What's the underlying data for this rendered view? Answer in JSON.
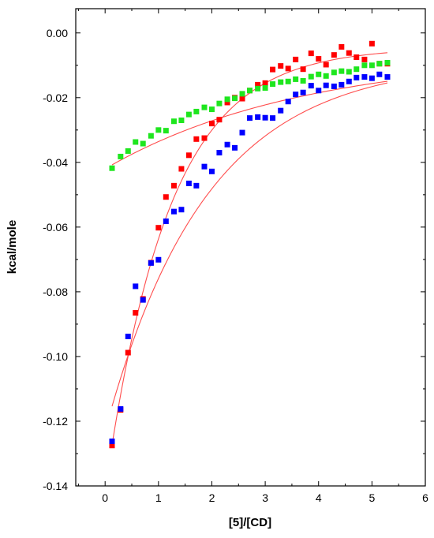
{
  "chart_data": {
    "type": "scatter",
    "xlabel": "[5]/[CD]",
    "ylabel": "kcal/mole",
    "xlim": [
      -0.55,
      6.0
    ],
    "ylim": [
      -0.14,
      0.0075
    ],
    "xticks": [
      0,
      1,
      2,
      3,
      4,
      5,
      6
    ],
    "yticks": [
      0.0,
      -0.02,
      -0.04,
      -0.06,
      -0.08,
      -0.1,
      -0.12,
      -0.14
    ],
    "ytick_labels": [
      "0.00",
      "-0.02",
      "-0.04",
      "-0.06",
      "-0.08",
      "-0.10",
      "-0.12",
      "-0.14"
    ],
    "grid": false,
    "fit_color": "#ff4d4d",
    "series": [
      {
        "color": "#ff0000",
        "x": [
          0.13,
          0.29,
          0.43,
          0.57,
          0.71,
          0.86,
          1.0,
          1.14,
          1.29,
          1.43,
          1.57,
          1.71,
          1.86,
          2.0,
          2.14,
          2.29,
          2.43,
          2.57,
          2.71,
          2.86,
          3.0,
          3.14,
          3.29,
          3.43,
          3.57,
          3.71,
          3.86,
          4.0,
          4.14,
          4.29,
          4.43,
          4.57,
          4.71,
          4.86,
          5.0,
          5.14,
          5.29
        ],
        "y": [
          -0.1275,
          -0.1165,
          -0.0988,
          -0.0865,
          -0.0822,
          -0.071,
          -0.0602,
          -0.0507,
          -0.0472,
          -0.042,
          -0.0378,
          -0.0328,
          -0.0325,
          -0.028,
          -0.0268,
          -0.0215,
          -0.02,
          -0.0203,
          -0.0178,
          -0.016,
          -0.0155,
          -0.0113,
          -0.0102,
          -0.011,
          -0.0082,
          -0.0112,
          -0.0063,
          -0.008,
          -0.0098,
          -0.0068,
          -0.0043,
          -0.0062,
          -0.0075,
          -0.0082,
          -0.0033,
          -0.0095,
          -0.0095
        ],
        "fit": {
          "model": "exponential",
          "a": -0.137,
          "b": 0.84,
          "c": -0.0045
        }
      },
      {
        "color": "#0000ff",
        "x": [
          0.13,
          0.29,
          0.43,
          0.57,
          0.71,
          0.86,
          1.0,
          1.14,
          1.29,
          1.43,
          1.57,
          1.71,
          1.86,
          2.0,
          2.14,
          2.29,
          2.43,
          2.57,
          2.71,
          2.86,
          3.0,
          3.14,
          3.29,
          3.43,
          3.57,
          3.71,
          3.86,
          4.0,
          4.14,
          4.29,
          4.43,
          4.57,
          4.71,
          4.86,
          5.0,
          5.14,
          5.29
        ],
        "y": [
          -0.1262,
          -0.1162,
          -0.0938,
          -0.0783,
          -0.0825,
          -0.0711,
          -0.0701,
          -0.0582,
          -0.0552,
          -0.0546,
          -0.0465,
          -0.0472,
          -0.0413,
          -0.0428,
          -0.037,
          -0.0345,
          -0.0355,
          -0.0308,
          -0.0263,
          -0.026,
          -0.0262,
          -0.0263,
          -0.024,
          -0.0212,
          -0.019,
          -0.0184,
          -0.0163,
          -0.0178,
          -0.0162,
          -0.0165,
          -0.016,
          -0.015,
          -0.0138,
          -0.0136,
          -0.014,
          -0.0128,
          -0.0136
        ],
        "fit": {
          "model": "exponential",
          "a": -0.1145,
          "b": 0.53,
          "c": -0.0085
        }
      },
      {
        "color": "#1ee61e",
        "x": [
          0.13,
          0.29,
          0.43,
          0.57,
          0.71,
          0.86,
          1.0,
          1.14,
          1.29,
          1.43,
          1.57,
          1.71,
          1.86,
          2.0,
          2.14,
          2.29,
          2.43,
          2.57,
          2.71,
          2.86,
          3.0,
          3.14,
          3.29,
          3.43,
          3.57,
          3.71,
          3.86,
          4.0,
          4.14,
          4.29,
          4.43,
          4.57,
          4.71,
          4.86,
          5.0,
          5.14,
          5.29
        ],
        "y": [
          -0.0418,
          -0.0382,
          -0.0365,
          -0.0337,
          -0.0342,
          -0.0318,
          -0.03,
          -0.0302,
          -0.0273,
          -0.027,
          -0.0252,
          -0.0243,
          -0.023,
          -0.0236,
          -0.0218,
          -0.0205,
          -0.0202,
          -0.0188,
          -0.0178,
          -0.0172,
          -0.017,
          -0.0158,
          -0.0152,
          -0.015,
          -0.0143,
          -0.0148,
          -0.0135,
          -0.0128,
          -0.0133,
          -0.0122,
          -0.0118,
          -0.012,
          -0.0112,
          -0.01,
          -0.01,
          -0.0095,
          -0.0092
        ],
        "fit": {
          "model": "exponential",
          "a": -0.0356,
          "b": 0.27,
          "c": -0.0064
        }
      }
    ]
  }
}
